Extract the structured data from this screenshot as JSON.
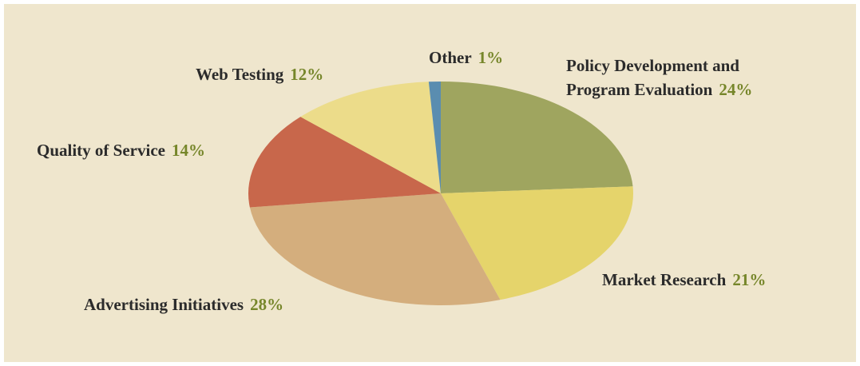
{
  "chart_data": {
    "type": "pie",
    "categories": [
      "Policy Development and Program Evaluation",
      "Market Research",
      "Advertising Initiatives",
      "Quality of Service",
      "Web Testing",
      "Other"
    ],
    "values": [
      24,
      21,
      28,
      14,
      12,
      1
    ],
    "value_labels": [
      "24%",
      "21%",
      "28%",
      "14%",
      "12%",
      "1%"
    ],
    "colors": [
      "#9fa55f",
      "#e5d46b",
      "#d4ae7d",
      "#c8674b",
      "#ecdc8a",
      "#5a8db0"
    ]
  }
}
